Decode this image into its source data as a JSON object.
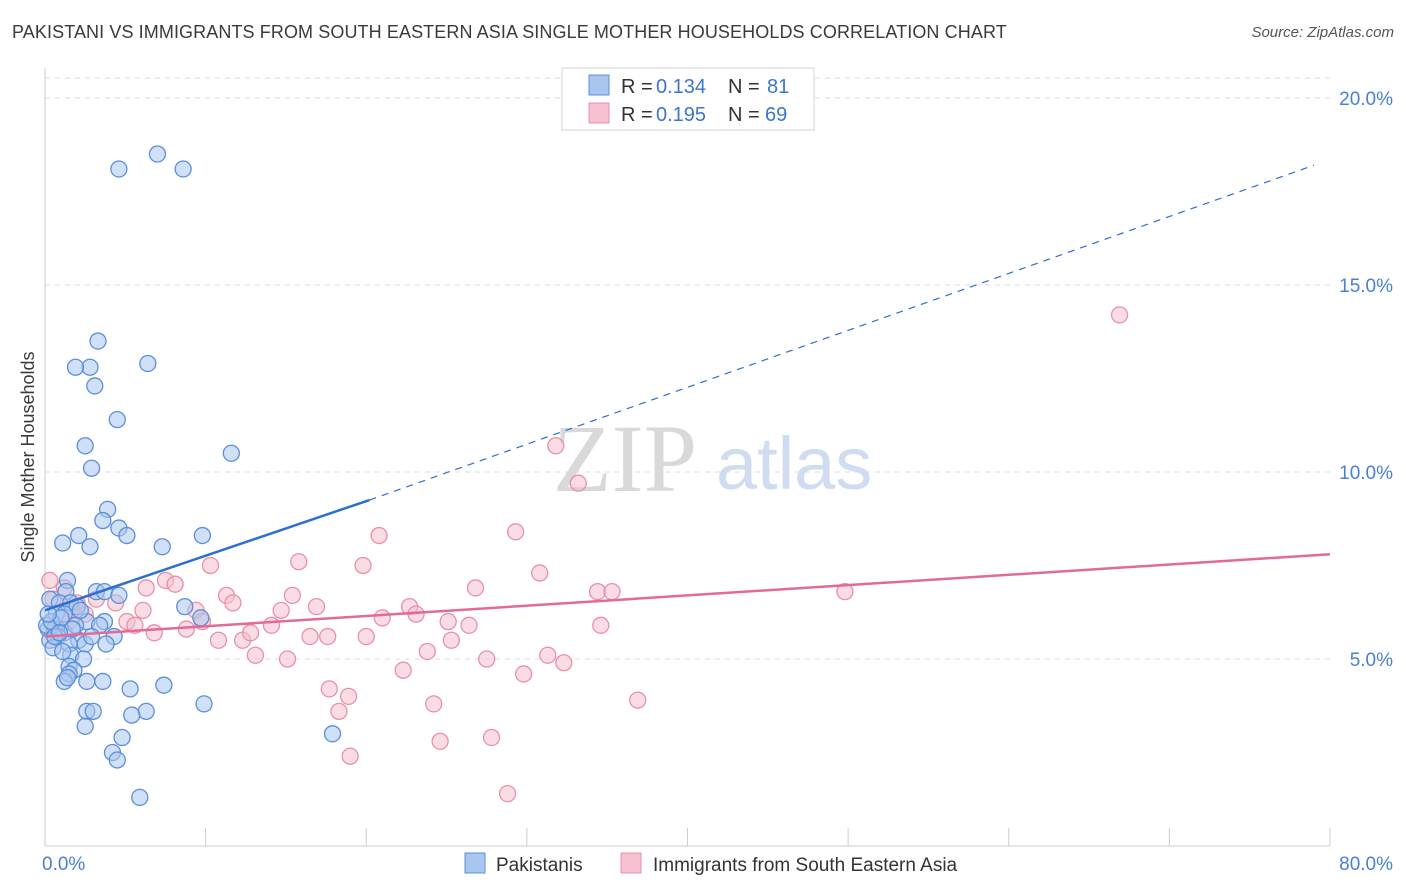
{
  "header": {
    "title": "PAKISTANI VS IMMIGRANTS FROM SOUTH EASTERN ASIA SINGLE MOTHER HOUSEHOLDS CORRELATION CHART",
    "source": "Source: ZipAtlas.com"
  },
  "watermark": {
    "zip": "ZIP",
    "atlas": "atlas"
  },
  "colors": {
    "blue_fill": "#a9c6ee",
    "blue_stroke": "#5b8fd9",
    "blue_line": "#2c6fcf",
    "pink_fill": "#f5c0d0",
    "pink_stroke": "#e890aa",
    "pink_line": "#e26a95",
    "grid": "#dcdcdc",
    "tick_label": "#4a7fd4"
  },
  "legend": {
    "rows": [
      {
        "r_label": "R = ",
        "r_value": "0.134",
        "n_label": "N = ",
        "n_value": "81"
      },
      {
        "r_label": "R = ",
        "r_value": "0.195",
        "n_label": "N = ",
        "n_value": "69"
      }
    ]
  },
  "bottom_legend": {
    "series1": "Pakistanis",
    "series2": "Immigrants from South Eastern Asia"
  },
  "chart_data": {
    "type": "scatter",
    "title": "PAKISTANI VS IMMIGRANTS FROM SOUTH EASTERN ASIA SINGLE MOTHER HOUSEHOLDS CORRELATION CHART",
    "xlabel": "",
    "ylabel": "Single Mother Households",
    "xlim": [
      0,
      80
    ],
    "ylim": [
      0,
      20.8
    ],
    "x_tick_labels": {
      "left": "0.0%",
      "right": "80.0%"
    },
    "y_ticks": [
      {
        "value": 5,
        "label": "5.0%"
      },
      {
        "value": 10,
        "label": "10.0%"
      },
      {
        "value": 15,
        "label": "15.0%"
      },
      {
        "value": 20,
        "label": "20.0%"
      }
    ],
    "series": [
      {
        "name": "Pakistanis",
        "R": 0.134,
        "N": 81,
        "trend": {
          "x0": 0,
          "y0": 6.3,
          "x_solid_end": 20.2,
          "y_solid_end": 9.25,
          "x1": 79,
          "y1": 18.2
        },
        "points": [
          [
            4.6,
            18.1
          ],
          [
            7.0,
            18.5
          ],
          [
            8.6,
            18.1
          ],
          [
            3.3,
            13.5
          ],
          [
            2.8,
            12.8
          ],
          [
            1.9,
            12.8
          ],
          [
            6.4,
            12.9
          ],
          [
            3.1,
            12.3
          ],
          [
            4.5,
            11.4
          ],
          [
            2.5,
            10.7
          ],
          [
            2.9,
            10.1
          ],
          [
            11.6,
            10.5
          ],
          [
            3.9,
            9.0
          ],
          [
            3.6,
            8.7
          ],
          [
            4.6,
            8.5
          ],
          [
            5.1,
            8.3
          ],
          [
            2.1,
            8.3
          ],
          [
            1.1,
            8.1
          ],
          [
            2.8,
            8.0
          ],
          [
            7.3,
            8.0
          ],
          [
            9.8,
            8.3
          ],
          [
            1.4,
            7.1
          ],
          [
            1.3,
            6.8
          ],
          [
            3.2,
            6.8
          ],
          [
            3.7,
            6.8
          ],
          [
            4.6,
            6.7
          ],
          [
            0.3,
            6.6
          ],
          [
            0.9,
            6.5
          ],
          [
            1.6,
            6.5
          ],
          [
            2.0,
            6.4
          ],
          [
            8.7,
            6.4
          ],
          [
            0.7,
            6.2
          ],
          [
            1.2,
            6.2
          ],
          [
            2.6,
            6.0
          ],
          [
            3.7,
            6.0
          ],
          [
            3.4,
            5.9
          ],
          [
            9.7,
            6.1
          ],
          [
            0.2,
            5.8
          ],
          [
            0.6,
            5.8
          ],
          [
            1.2,
            5.7
          ],
          [
            0.8,
            5.6
          ],
          [
            2.1,
            5.5
          ],
          [
            4.3,
            5.6
          ],
          [
            0.3,
            5.5
          ],
          [
            1.5,
            5.4
          ],
          [
            2.5,
            5.4
          ],
          [
            3.8,
            5.4
          ],
          [
            0.5,
            5.3
          ],
          [
            1.6,
            5.1
          ],
          [
            2.4,
            5.0
          ],
          [
            1.5,
            4.8
          ],
          [
            1.8,
            4.7
          ],
          [
            1.5,
            4.6
          ],
          [
            1.2,
            4.4
          ],
          [
            1.4,
            4.5
          ],
          [
            2.6,
            4.4
          ],
          [
            3.6,
            4.4
          ],
          [
            5.3,
            4.2
          ],
          [
            7.4,
            4.3
          ],
          [
            9.9,
            3.8
          ],
          [
            2.6,
            3.6
          ],
          [
            3.0,
            3.6
          ],
          [
            6.3,
            3.6
          ],
          [
            5.4,
            3.5
          ],
          [
            2.5,
            3.2
          ],
          [
            4.8,
            2.9
          ],
          [
            17.9,
            3.0
          ],
          [
            4.2,
            2.5
          ],
          [
            4.5,
            2.3
          ],
          [
            5.9,
            1.3
          ],
          [
            0.1,
            5.9
          ],
          [
            0.4,
            6.0
          ],
          [
            1.0,
            6.1
          ],
          [
            1.9,
            5.9
          ],
          [
            2.2,
            6.3
          ],
          [
            0.6,
            5.6
          ],
          [
            1.1,
            5.2
          ],
          [
            1.7,
            5.8
          ],
          [
            0.9,
            5.7
          ],
          [
            2.9,
            5.6
          ],
          [
            0.2,
            6.2
          ]
        ]
      },
      {
        "name": "Immigrants from South Eastern Asia",
        "R": 0.195,
        "N": 69,
        "trend": {
          "x0": 0,
          "y0": 5.6,
          "x1": 80,
          "y1": 7.8
        },
        "points": [
          [
            0.3,
            7.1
          ],
          [
            1.2,
            6.9
          ],
          [
            0.5,
            6.6
          ],
          [
            2.0,
            6.5
          ],
          [
            1.7,
            6.3
          ],
          [
            2.5,
            6.2
          ],
          [
            3.2,
            6.6
          ],
          [
            4.4,
            6.5
          ],
          [
            5.1,
            6.0
          ],
          [
            5.6,
            5.9
          ],
          [
            6.1,
            6.3
          ],
          [
            6.3,
            6.9
          ],
          [
            6.8,
            5.7
          ],
          [
            7.5,
            7.1
          ],
          [
            8.1,
            7.0
          ],
          [
            8.8,
            5.8
          ],
          [
            9.4,
            6.3
          ],
          [
            9.8,
            6.0
          ],
          [
            10.3,
            7.5
          ],
          [
            10.8,
            5.5
          ],
          [
            11.3,
            6.7
          ],
          [
            11.7,
            6.5
          ],
          [
            12.3,
            5.5
          ],
          [
            12.8,
            5.7
          ],
          [
            13.1,
            5.1
          ],
          [
            14.1,
            5.9
          ],
          [
            14.7,
            6.3
          ],
          [
            15.1,
            5.0
          ],
          [
            15.4,
            6.7
          ],
          [
            15.8,
            7.6
          ],
          [
            16.5,
            5.6
          ],
          [
            16.9,
            6.4
          ],
          [
            17.6,
            5.6
          ],
          [
            17.7,
            4.2
          ],
          [
            18.3,
            3.6
          ],
          [
            18.9,
            4.0
          ],
          [
            19.0,
            2.4
          ],
          [
            19.8,
            7.5
          ],
          [
            20.0,
            5.6
          ],
          [
            20.8,
            8.3
          ],
          [
            21.0,
            6.1
          ],
          [
            22.3,
            4.7
          ],
          [
            22.7,
            6.4
          ],
          [
            23.1,
            6.2
          ],
          [
            23.8,
            5.2
          ],
          [
            24.2,
            3.8
          ],
          [
            24.6,
            2.8
          ],
          [
            25.1,
            6.0
          ],
          [
            25.3,
            5.5
          ],
          [
            26.4,
            5.9
          ],
          [
            26.8,
            6.9
          ],
          [
            27.5,
            5.0
          ],
          [
            27.8,
            2.9
          ],
          [
            28.8,
            1.4
          ],
          [
            29.3,
            8.4
          ],
          [
            29.8,
            4.6
          ],
          [
            30.8,
            7.3
          ],
          [
            31.3,
            5.1
          ],
          [
            31.8,
            10.7
          ],
          [
            32.3,
            4.9
          ],
          [
            33.2,
            9.7
          ],
          [
            34.4,
            6.8
          ],
          [
            34.6,
            5.9
          ],
          [
            35.3,
            6.8
          ],
          [
            36.9,
            3.9
          ],
          [
            49.8,
            6.8
          ],
          [
            66.9,
            14.2
          ],
          [
            1.5,
            6.0
          ],
          [
            0.8,
            5.8
          ]
        ]
      }
    ]
  }
}
